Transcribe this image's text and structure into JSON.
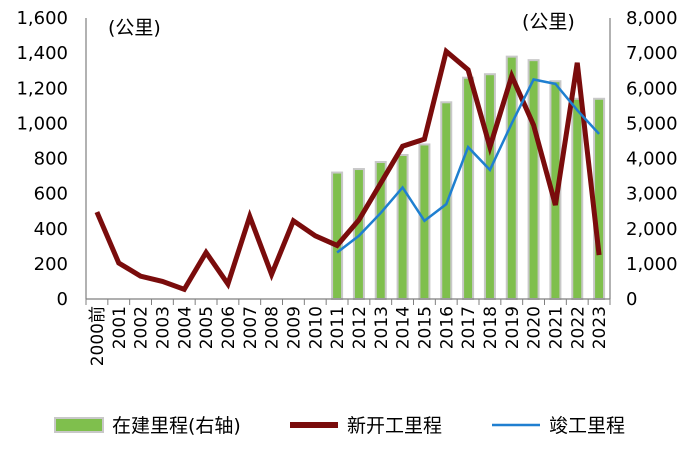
{
  "chart_data": {
    "type": "bar+line",
    "categories": [
      "2000前",
      "2001",
      "2002",
      "2003",
      "2004",
      "2005",
      "2006",
      "2007",
      "2008",
      "2009",
      "2010",
      "2011",
      "2012",
      "2013",
      "2014",
      "2015",
      "2016",
      "2017",
      "2018",
      "2019",
      "2020",
      "2021",
      "2022",
      "2023"
    ],
    "y_left": {
      "unit_label": "(公里)",
      "min": 0,
      "max": 1600,
      "ticks": [
        "0",
        "200",
        "400",
        "600",
        "800",
        "1,000",
        "1,200",
        "1,400",
        "1,600"
      ]
    },
    "y_right": {
      "unit_label": "(公里)",
      "min": 0,
      "max": 8000,
      "ticks": [
        "0",
        "1,000",
        "2,000",
        "3,000",
        "4,000",
        "5,000",
        "6,000",
        "7,000",
        "8,000"
      ]
    },
    "series": [
      {
        "name": "在建里程(右轴)",
        "kind": "bar",
        "axis": "right",
        "color": "#7fbf4d",
        "values": [
          null,
          null,
          null,
          null,
          null,
          null,
          null,
          null,
          null,
          null,
          null,
          3600,
          3700,
          3900,
          4100,
          4400,
          5600,
          6300,
          6400,
          6900,
          6800,
          6200,
          5700,
          5700
        ]
      },
      {
        "name": "新开工里程",
        "kind": "line",
        "axis": "left",
        "color": "#7a0c0c",
        "values": [
          495,
          205,
          130,
          100,
          55,
          265,
          85,
          470,
          140,
          445,
          360,
          305,
          450,
          660,
          870,
          910,
          1410,
          1305,
          865,
          1270,
          990,
          535,
          1345,
          250
        ]
      },
      {
        "name": "竣工里程",
        "kind": "line",
        "axis": "left",
        "color": "#1f7fd0",
        "values": [
          null,
          null,
          null,
          null,
          null,
          null,
          null,
          null,
          null,
          null,
          null,
          265,
          360,
          490,
          635,
          445,
          540,
          865,
          735,
          1000,
          1250,
          1225,
          1075,
          940
        ]
      }
    ],
    "grid": false,
    "legend_position": "bottom"
  },
  "legend": {
    "items": [
      {
        "label": "在建里程(右轴)"
      },
      {
        "label": "新开工里程"
      },
      {
        "label": "竣工里程"
      }
    ]
  }
}
